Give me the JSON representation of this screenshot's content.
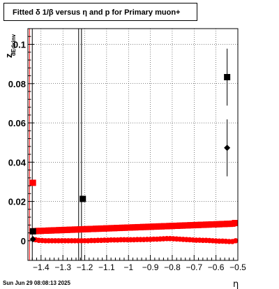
{
  "title": "Fitted δ 1/β versus η and p for Primary muon+",
  "footer": "Sun Jun 29 08:08:13 2025",
  "chart_data": {
    "type": "scatter",
    "title": "Fitted δ 1/β versus η and p for Primary muon+",
    "xlabel": "η",
    "ylabel": "z",
    "ylabel_sub": "dEdxinv",
    "xlim": [
      -1.46,
      -0.5
    ],
    "ylim": [
      -0.01,
      0.108
    ],
    "x_ticks": [
      -1.4,
      -1.3,
      -1.2,
      -1.1,
      -1,
      -0.9,
      -0.8,
      -0.7,
      -0.6,
      -0.5
    ],
    "x_tick_labels": [
      "−1.4",
      "−1.3",
      "−1.2",
      "−1.1",
      "−1",
      "−0.9",
      "−0.8",
      "−0.7",
      "−0.6",
      "−0.5"
    ],
    "y_ticks": [
      0,
      0.02,
      0.04,
      0.06,
      0.08,
      0.1
    ],
    "y_tick_labels": [
      "0",
      "0.02",
      "0.04",
      "0.06",
      "0.08",
      "0.1"
    ],
    "grid": true,
    "vertical_lines": [
      -1.44,
      -1.228,
      -1.215
    ],
    "series": [
      {
        "marker": "square",
        "color": "#ff0000",
        "x": [
          -1.425,
          -1.413,
          -1.401,
          -1.389,
          -1.377,
          -1.365,
          -1.353,
          -1.341,
          -1.329,
          -1.317,
          -1.305,
          -1.293,
          -1.281,
          -1.269,
          -1.257,
          -1.245,
          -1.233,
          -1.221,
          -1.209,
          -1.197,
          -1.185,
          -1.173,
          -1.161,
          -1.149,
          -1.137,
          -1.125,
          -1.113,
          -1.101,
          -1.089,
          -1.077,
          -1.065,
          -1.053,
          -1.041,
          -1.029,
          -1.017,
          -1.005,
          -0.993,
          -0.981,
          -0.969,
          -0.957,
          -0.945,
          -0.933,
          -0.921,
          -0.909,
          -0.897,
          -0.885,
          -0.873,
          -0.861,
          -0.849,
          -0.837,
          -0.825,
          -0.813,
          -0.801,
          -0.789,
          -0.777,
          -0.765,
          -0.753,
          -0.741,
          -0.729,
          -0.717,
          -0.705,
          -0.693,
          -0.681,
          -0.669,
          -0.657,
          -0.645,
          -0.633,
          -0.621,
          -0.609,
          -0.597,
          -0.585,
          -0.573,
          -0.561,
          -0.549,
          -0.537,
          -0.525,
          -0.513
        ],
        "y": [
          0.0049,
          0.005,
          0.005,
          0.0051,
          0.0051,
          0.0052,
          0.0052,
          0.0053,
          0.0053,
          0.0054,
          0.0054,
          0.0055,
          0.0055,
          0.0056,
          0.0056,
          0.0057,
          0.0057,
          0.0058,
          0.0058,
          0.0059,
          0.0059,
          0.006,
          0.006,
          0.0061,
          0.0061,
          0.0062,
          0.0062,
          0.0063,
          0.0063,
          0.0064,
          0.0064,
          0.0065,
          0.0065,
          0.0066,
          0.0066,
          0.0067,
          0.0067,
          0.0068,
          0.0068,
          0.0069,
          0.0069,
          0.007,
          0.007,
          0.0071,
          0.0071,
          0.0072,
          0.0072,
          0.0073,
          0.0073,
          0.0074,
          0.0074,
          0.0075,
          0.0075,
          0.0076,
          0.0076,
          0.0077,
          0.0077,
          0.0078,
          0.0078,
          0.0079,
          0.0079,
          0.008,
          0.008,
          0.0081,
          0.0081,
          0.0082,
          0.0082,
          0.0083,
          0.0083,
          0.0084,
          0.0084,
          0.0085,
          0.0085,
          0.0086,
          0.0086,
          0.0087,
          0.009
        ]
      },
      {
        "marker": "square",
        "color": "#ff0000",
        "x": [
          -1.437
        ],
        "y": [
          0.0295
        ]
      },
      {
        "marker": "circle",
        "color": "#ff0000",
        "x": [
          -1.425,
          -1.41,
          -1.395,
          -1.38,
          -1.365,
          -1.35,
          -1.335,
          -1.32,
          -1.305,
          -1.29,
          -1.275,
          -1.26,
          -1.245,
          -1.23,
          -1.215,
          -1.2,
          -1.185,
          -1.17,
          -1.155,
          -1.14,
          -1.125,
          -1.11,
          -1.095,
          -1.08,
          -1.065,
          -1.05,
          -1.035,
          -1.02,
          -1.005,
          -0.99,
          -0.975,
          -0.96,
          -0.945,
          -0.93,
          -0.915,
          -0.9,
          -0.885,
          -0.87,
          -0.855,
          -0.84,
          -0.825,
          -0.81,
          -0.795,
          -0.78,
          -0.765,
          -0.75,
          -0.735,
          -0.72,
          -0.705,
          -0.69,
          -0.675,
          -0.66,
          -0.645,
          -0.63,
          -0.615,
          -0.6,
          -0.585,
          -0.57,
          -0.555,
          -0.54,
          -0.525,
          -0.51
        ],
        "y": [
          0.0005,
          0.0002,
          0.0001,
          0.0,
          0.0,
          0.0,
          0.0,
          0.0,
          0.0,
          0.0,
          0.0,
          0.0,
          0.0,
          0.0,
          0.0,
          0.0,
          0.0,
          0.0001,
          0.0001,
          0.0002,
          0.0002,
          0.0003,
          0.0003,
          0.0004,
          0.0004,
          0.0004,
          0.0005,
          0.0005,
          0.0005,
          0.0005,
          0.0005,
          0.0006,
          0.0006,
          0.0006,
          0.0007,
          0.0007,
          0.0008,
          0.0008,
          0.0009,
          0.001,
          0.0011,
          0.0011,
          0.001,
          0.0009,
          0.0008,
          0.0007,
          0.0006,
          0.0005,
          0.0004,
          0.0003,
          0.0003,
          0.0002,
          0.0002,
          0.0001,
          0.0,
          -0.0001,
          -0.0002,
          -0.0002,
          -0.0003,
          -0.0004,
          -0.0004,
          0.0
        ]
      },
      {
        "marker": "square",
        "color": "#000000",
        "x": [
          -1.437,
          -1.209,
          -0.549
        ],
        "y": [
          0.0048,
          0.0213,
          0.0833
        ],
        "err": [
          0,
          0,
          0.0145
        ]
      },
      {
        "marker": "diamond",
        "color": "#000000",
        "x": [
          -1.437,
          -0.549
        ],
        "y": [
          0.0008,
          0.0473
        ],
        "err": [
          0,
          0.0145
        ]
      }
    ]
  }
}
